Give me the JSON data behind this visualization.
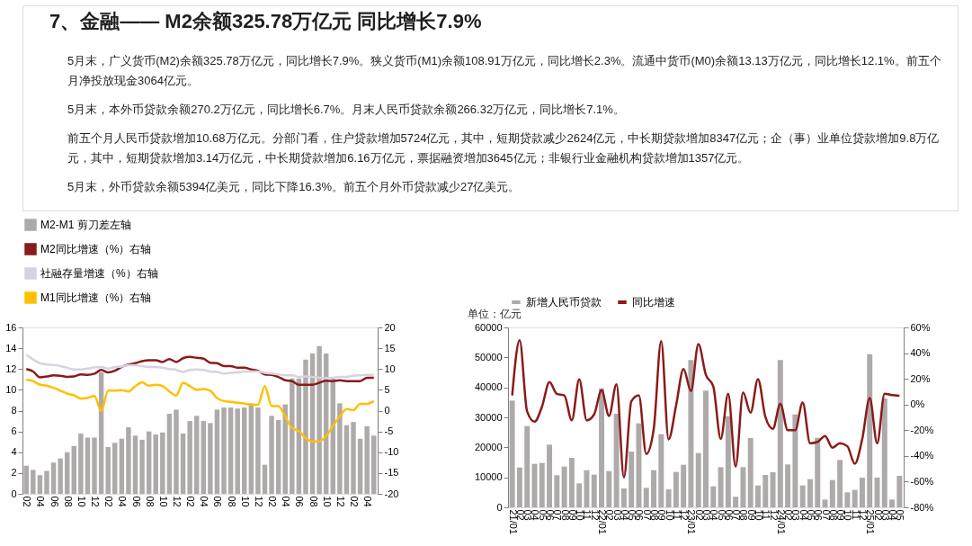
{
  "chart_data": [
    {
      "type": "other",
      "title": "7、金融—— M2余额325.78万亿元  同比增长7.9%",
      "annotations": [
        "5月末，广义货币(M2)余额325.78万亿元，同比增长7.9%。狭义货币(M1)余额108.91万亿元，同比增长2.3%。流通中货币(M0)余额13.13万亿元，同比增长12.1%。前五个月净投放现金3064亿元。",
        "5月末，本外币贷款余额270.2万亿元，同比增长6.7%。月末人民币贷款余额266.32万亿元，同比增长7.1%。",
        "前五个月人民币贷款增加10.68万亿元。分部门看，住户贷款增加5724亿元，其中，短期贷款减少2624亿元，中长期贷款增加8347亿元；企（事）业单位贷款增加9.8万亿元，其中，短期贷款增加3.14万亿元，中长期贷款增加6.16万亿元，票据融资增加3645亿元；非银行业金融机构贷款增加1357亿元。",
        "5月末，外币贷款余额5394亿美元，同比下降16.3%。前五个月外币贷款减少27亿美元。"
      ]
    },
    {
      "type": "bar",
      "legend": "top",
      "grid": false,
      "categories": [
        "02",
        null,
        "04",
        null,
        "06",
        null,
        "08",
        null,
        "10",
        null,
        "12",
        null,
        "02",
        null,
        "04",
        null,
        "06",
        null,
        "08",
        null,
        "10",
        null,
        "12",
        null,
        "02",
        null,
        "04",
        null,
        "06",
        null,
        "08",
        null,
        "10",
        null,
        "12",
        null,
        "02",
        null,
        "04",
        null,
        "06",
        null,
        "08",
        null,
        "10",
        null,
        "12",
        null,
        "02",
        null,
        "04",
        null
      ],
      "ylim": [
        0,
        16
      ],
      "yticks": [
        0,
        2,
        4,
        6,
        8,
        10,
        12,
        14,
        16
      ],
      "y2lim": [
        -20,
        20
      ],
      "y2ticks": [
        -20,
        -15,
        -10,
        -5,
        0,
        5,
        10,
        15,
        20
      ],
      "series": [
        {
          "name": "M2-M1 剪刀差左轴",
          "type": "bar",
          "color": "#aeaaaa",
          "values": [
            2.7,
            2.3,
            1.8,
            2.2,
            3.0,
            3.4,
            4.0,
            4.6,
            5.8,
            5.4,
            5.4,
            11.7,
            4.5,
            4.9,
            5.3,
            6.4,
            5.6,
            5.2,
            6.0,
            5.7,
            5.9,
            7.7,
            8.1,
            5.8,
            7.0,
            7.5,
            7.0,
            6.8,
            8.1,
            8.3,
            8.3,
            8.2,
            8.3,
            8.7,
            8.3,
            2.8,
            7.5,
            7.1,
            8.6,
            11.1,
            11.1,
            12.9,
            13.5,
            14.2,
            13.5,
            11.1,
            8.7,
            6.6,
            6.9,
            5.3,
            6.5,
            5.6
          ]
        },
        {
          "name": "M2同比增速（%）右轴",
          "type": "line",
          "axis": "y2",
          "color": "#8b1a1a",
          "values": [
            10.0,
            9.4,
            8.0,
            8.2,
            8.5,
            8.4,
            8.1,
            8.2,
            8.7,
            8.6,
            8.9,
            9.8,
            9.2,
            9.6,
            10.5,
            11.1,
            11.4,
            11.9,
            12.1,
            12.1,
            11.7,
            12.4,
            11.7,
            12.6,
            12.9,
            12.7,
            12.5,
            11.5,
            11.4,
            10.7,
            10.7,
            10.3,
            10.3,
            9.9,
            9.6,
            8.7,
            8.6,
            8.1,
            7.3,
            7.1,
            6.2,
            6.2,
            6.2,
            6.7,
            7.2,
            7.1,
            7.3,
            7.1,
            7.1,
            7.1,
            7.9,
            7.9
          ]
        },
        {
          "name": "社融存量增速（%）右轴",
          "type": "line",
          "axis": "y2",
          "color": "#d6d3e0",
          "values": [
            13.4,
            12.3,
            11.4,
            11.1,
            11.0,
            10.7,
            10.3,
            9.9,
            9.9,
            10.1,
            10.4,
            10.5,
            10.1,
            10.5,
            10.6,
            10.9,
            10.9,
            10.7,
            10.5,
            10.5,
            10.3,
            10.0,
            9.8,
            9.3,
            9.8,
            9.9,
            9.8,
            9.4,
            9.3,
            8.9,
            9.1,
            9.2,
            9.4,
            9.4,
            9.4,
            9.1,
            8.9,
            8.7,
            8.5,
            8.5,
            8.1,
            8.2,
            8.1,
            7.9,
            7.8,
            7.9,
            8.1,
            8.1,
            8.4,
            8.5,
            8.6,
            8.6
          ]
        },
        {
          "name": "M1同比增速（%）右轴",
          "type": "line",
          "axis": "y2",
          "color": "#ffc000",
          "values": [
            7.4,
            7.1,
            6.2,
            6.0,
            5.5,
            4.8,
            4.1,
            3.7,
            2.9,
            3.1,
            3.5,
            -0.1,
            4.8,
            4.8,
            4.9,
            4.6,
            5.9,
            6.8,
            6.0,
            6.2,
            5.9,
            4.6,
            3.6,
            6.7,
            5.9,
            5.0,
            5.2,
            4.8,
            3.0,
            2.3,
            2.1,
            1.9,
            1.7,
            1.4,
            1.4,
            5.9,
            1.1,
            1.1,
            -1.4,
            -4.2,
            -4.9,
            -6.6,
            -7.4,
            -7.4,
            -6.1,
            -3.7,
            -1.4,
            0.4,
            0.1,
            1.6,
            1.6,
            2.3
          ]
        }
      ]
    },
    {
      "type": "bar",
      "legend": "top",
      "grid": false,
      "annotations": [
        "单位：亿元"
      ],
      "categories": [
        "21/01",
        "02",
        "03",
        "04",
        "05",
        "06",
        "07",
        "08",
        "09",
        "10",
        "11",
        "12",
        "22/01",
        "02",
        "03",
        "04",
        "05",
        "06",
        "07",
        "08",
        "09",
        "10",
        "11",
        "12",
        "23/01",
        "02",
        "03",
        "04",
        "05",
        "06",
        "07",
        "08",
        "09",
        "10",
        "11",
        "12",
        "24/01",
        "02",
        "03",
        "04",
        "05",
        "06",
        "07",
        "08",
        "09",
        "10",
        "11",
        "12",
        "25/01",
        "02",
        "03",
        "04",
        "05"
      ],
      "ylim": [
        0,
        60000
      ],
      "yticks": [
        0,
        10000,
        20000,
        30000,
        40000,
        50000,
        60000
      ],
      "y2lim": [
        -80,
        60
      ],
      "y2ticks": [
        {
          "value": -80,
          "label": "-80%"
        },
        {
          "value": -60,
          "label": "-60%"
        },
        {
          "value": -40,
          "label": "-40%"
        },
        {
          "value": -20,
          "label": "-20%"
        },
        {
          "value": 0,
          "label": "0%"
        },
        {
          "value": 20,
          "label": "20%"
        },
        {
          "value": 40,
          "label": "40%"
        },
        {
          "value": 60,
          "label": "60%"
        }
      ],
      "series": [
        {
          "name": "新增人民币贷款",
          "type": "bar",
          "color": "#aeaaaa",
          "values": [
            35600,
            13300,
            27100,
            14500,
            14800,
            20900,
            10700,
            13600,
            16500,
            8000,
            12400,
            10900,
            39700,
            12100,
            31200,
            6300,
            18600,
            28000,
            6500,
            12400,
            24400,
            6000,
            11800,
            14200,
            49100,
            18100,
            38900,
            7000,
            13400,
            30400,
            3500,
            13400,
            23100,
            7300,
            10800,
            11700,
            49100,
            14300,
            31000,
            7300,
            9400,
            23200,
            2600,
            9100,
            15800,
            5000,
            5800,
            9900,
            51100,
            9900,
            36300,
            2600,
            10500
          ]
        },
        {
          "name": "同比增速",
          "type": "line",
          "axis": "y2",
          "color": "#8b1a1a",
          "values": [
            7.1,
            50.0,
            -5.4,
            -13.4,
            -1.6,
            17.4,
            8.3,
            7.1,
            -12.3,
            19.6,
            -12.3,
            -7.7,
            11.2,
            -8.9,
            15.8,
            -56.7,
            2.5,
            7.1,
            -38.5,
            -19.1,
            49.3,
            -27.1,
            -0.9,
            27.6,
            10.5,
            47.0,
            23.2,
            14.1,
            -26.8,
            8.4,
            -48.4,
            9.5,
            -6.4,
            19.8,
            -9.8,
            -18.9,
            0.5,
            -20,
            -20,
            1.6,
            -30.2,
            -29.1,
            -24.5,
            -33.6,
            -30.2,
            -32.5,
            -46.1,
            -26.8,
            5.0,
            -30.2,
            8.4,
            7.3,
            6.8
          ]
        }
      ]
    }
  ]
}
